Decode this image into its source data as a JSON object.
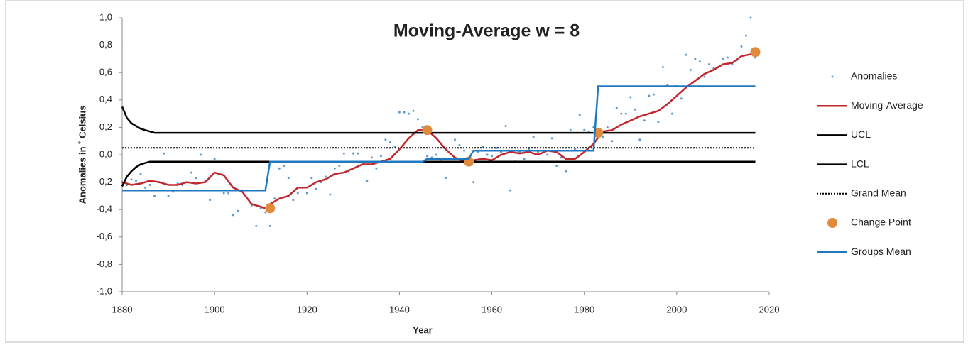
{
  "chart_data": {
    "type": "line",
    "title": "Moving-Average w = 8",
    "x_label": "Year",
    "y_label": "Anomalies in ˚ Celsius",
    "xlim": [
      1880,
      2020
    ],
    "xticks": [
      1880,
      1900,
      1920,
      1940,
      1960,
      1980,
      2000,
      2020
    ],
    "ylim": [
      -1.0,
      1.0
    ],
    "yticks": [
      {
        "value": -1.0,
        "label": "-1,0"
      },
      {
        "value": -0.8,
        "label": "-0,8"
      },
      {
        "value": -0.6,
        "label": "-0,6"
      },
      {
        "value": -0.4,
        "label": "-0,4"
      },
      {
        "value": -0.2,
        "label": "-0,2"
      },
      {
        "value": 0.0,
        "label": "0,0"
      },
      {
        "value": 0.2,
        "label": "0,2"
      },
      {
        "value": 0.4,
        "label": "0,4"
      },
      {
        "value": 0.6,
        "label": "0,6"
      },
      {
        "value": 0.8,
        "label": "0,8"
      },
      {
        "value": 1.0,
        "label": "1,0"
      }
    ],
    "grid": false,
    "legend": "right",
    "series": [
      {
        "name": "Anomalies",
        "style": "dots",
        "color": "#5b9bd5",
        "x": [
          1880,
          1881,
          1882,
          1883,
          1884,
          1885,
          1886,
          1887,
          1888,
          1889,
          1890,
          1891,
          1892,
          1893,
          1894,
          1895,
          1896,
          1897,
          1898,
          1899,
          1900,
          1901,
          1902,
          1903,
          1904,
          1905,
          1906,
          1907,
          1908,
          1909,
          1910,
          1911,
          1912,
          1913,
          1914,
          1915,
          1916,
          1917,
          1918,
          1919,
          1920,
          1921,
          1922,
          1923,
          1924,
          1925,
          1926,
          1927,
          1928,
          1929,
          1930,
          1931,
          1932,
          1933,
          1934,
          1935,
          1936,
          1937,
          1938,
          1939,
          1940,
          1941,
          1942,
          1943,
          1944,
          1945,
          1946,
          1947,
          1948,
          1949,
          1950,
          1951,
          1952,
          1953,
          1954,
          1955,
          1956,
          1957,
          1958,
          1959,
          1960,
          1961,
          1962,
          1963,
          1964,
          1965,
          1966,
          1967,
          1968,
          1969,
          1970,
          1971,
          1972,
          1973,
          1974,
          1975,
          1976,
          1977,
          1978,
          1979,
          1980,
          1981,
          1982,
          1983,
          1984,
          1985,
          1986,
          1987,
          1988,
          1989,
          1990,
          1991,
          1992,
          1993,
          1994,
          1995,
          1996,
          1997,
          1998,
          1999,
          2000,
          2001,
          2002,
          2003,
          2004,
          2005,
          2006,
          2007,
          2008,
          2009,
          2010,
          2011,
          2012,
          2013,
          2014,
          2015,
          2016,
          2017
        ],
        "values": [
          -0.2,
          -0.22,
          -0.18,
          -0.19,
          -0.14,
          -0.24,
          -0.22,
          -0.3,
          -0.2,
          0.01,
          -0.3,
          -0.27,
          -0.21,
          -0.22,
          -0.2,
          -0.13,
          -0.17,
          0.0,
          -0.19,
          -0.33,
          -0.03,
          0.05,
          -0.28,
          -0.28,
          -0.44,
          -0.41,
          -0.26,
          -0.32,
          -0.37,
          -0.52,
          -0.39,
          -0.42,
          -0.52,
          -0.32,
          -0.1,
          -0.08,
          -0.17,
          -0.33,
          -0.28,
          -0.24,
          -0.28,
          -0.17,
          -0.25,
          -0.2,
          -0.16,
          -0.29,
          -0.1,
          -0.08,
          0.01,
          -0.12,
          0.01,
          0.01,
          -0.06,
          -0.19,
          -0.02,
          -0.1,
          -0.01,
          0.11,
          0.09,
          0.06,
          0.31,
          0.31,
          0.3,
          0.32,
          0.26,
          0.2,
          -0.01,
          -0.02,
          0.0,
          -0.05,
          -0.17,
          0.01,
          0.11,
          0.07,
          0.03,
          -0.07,
          -0.2,
          0.02,
          0.06,
          0.0,
          -0.01,
          0.05,
          0.02,
          0.21,
          -0.26,
          -0.05,
          0.02,
          -0.03,
          0.04,
          0.13,
          0.02,
          -0.05,
          0.0,
          0.12,
          -0.08,
          -0.02,
          -0.12,
          0.18,
          0.04,
          0.29,
          0.18,
          0.17,
          0.2,
          0.14,
          0.13,
          0.2,
          0.1,
          0.34,
          0.3,
          0.3,
          0.42,
          0.33,
          0.11,
          0.25,
          0.43,
          0.44,
          0.24,
          0.64,
          0.51,
          0.3,
          0.5,
          0.41,
          0.73,
          0.62,
          0.7,
          0.68,
          0.57,
          0.66,
          0.63,
          0.64,
          0.7,
          0.71,
          0.66,
          0.69,
          0.79,
          0.87,
          1.0,
          0.71
        ]
      },
      {
        "name": "Moving-Average",
        "style": "line",
        "color": "#c0282d",
        "x": [
          1880,
          1882,
          1884,
          1886,
          1888,
          1890,
          1892,
          1894,
          1896,
          1898,
          1900,
          1902,
          1904,
          1906,
          1908,
          1910,
          1911,
          1912,
          1914,
          1916,
          1918,
          1920,
          1922,
          1924,
          1926,
          1928,
          1930,
          1932,
          1934,
          1936,
          1938,
          1940,
          1942,
          1944,
          1946,
          1948,
          1950,
          1952,
          1954,
          1956,
          1958,
          1960,
          1962,
          1964,
          1966,
          1968,
          1970,
          1972,
          1974,
          1976,
          1978,
          1980,
          1982,
          1984,
          1986,
          1988,
          1990,
          1992,
          1994,
          1996,
          1998,
          2000,
          2002,
          2004,
          2006,
          2008,
          2010,
          2012,
          2014,
          2017
        ],
        "values": [
          -0.2,
          -0.22,
          -0.21,
          -0.19,
          -0.2,
          -0.22,
          -0.22,
          -0.2,
          -0.21,
          -0.2,
          -0.13,
          -0.15,
          -0.24,
          -0.27,
          -0.36,
          -0.38,
          -0.39,
          -0.36,
          -0.32,
          -0.3,
          -0.24,
          -0.24,
          -0.2,
          -0.18,
          -0.14,
          -0.13,
          -0.1,
          -0.07,
          -0.07,
          -0.05,
          -0.03,
          0.04,
          0.12,
          0.18,
          0.18,
          0.12,
          0.04,
          -0.02,
          -0.05,
          -0.04,
          -0.03,
          -0.04,
          0.0,
          0.02,
          0.01,
          0.02,
          0.0,
          0.03,
          0.02,
          -0.03,
          -0.03,
          0.02,
          0.08,
          0.17,
          0.18,
          0.22,
          0.25,
          0.28,
          0.3,
          0.32,
          0.37,
          0.43,
          0.49,
          0.54,
          0.59,
          0.62,
          0.66,
          0.67,
          0.72,
          0.74
        ]
      },
      {
        "name": "UCL",
        "style": "line",
        "color": "#000000",
        "x": [
          1880,
          1881,
          1882,
          1883,
          1884,
          1885,
          1886,
          1887,
          2017
        ],
        "values": [
          0.35,
          0.27,
          0.23,
          0.21,
          0.19,
          0.18,
          0.17,
          0.16,
          0.16
        ]
      },
      {
        "name": "LCL",
        "style": "line",
        "color": "#000000",
        "x": [
          1880,
          1881,
          1882,
          1883,
          1884,
          1885,
          1886,
          1887,
          2017
        ],
        "values": [
          -0.23,
          -0.16,
          -0.12,
          -0.09,
          -0.07,
          -0.06,
          -0.05,
          -0.05,
          -0.05
        ]
      },
      {
        "name": "Grand Mean",
        "style": "dotted",
        "color": "#000000",
        "x": [
          1880,
          2017
        ],
        "values": [
          0.05,
          0.05
        ]
      },
      {
        "name": "Change Point",
        "style": "points",
        "color": "#e08a3c",
        "x": [
          1912,
          1946,
          1955,
          1983,
          2017
        ],
        "values": [
          -0.39,
          0.18,
          -0.05,
          0.16,
          0.75
        ]
      },
      {
        "name": "Groups Mean",
        "style": "line",
        "color": "#1f78c0",
        "x": [
          1880,
          1911,
          1912,
          1945,
          1946,
          1955,
          1956,
          1982,
          1983,
          2017
        ],
        "values": [
          -0.26,
          -0.26,
          -0.05,
          -0.05,
          -0.03,
          -0.03,
          0.03,
          0.03,
          0.5,
          0.5
        ]
      }
    ]
  }
}
